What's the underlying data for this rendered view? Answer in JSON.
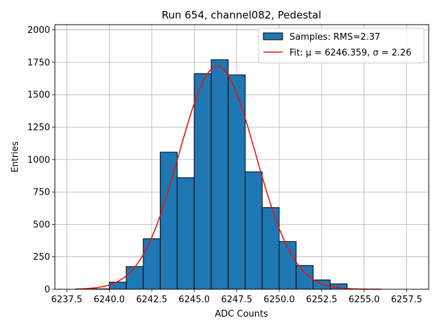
{
  "chart_data": {
    "type": "bar",
    "title": "Run 654, channel082, Pedestal",
    "xlabel": "ADC Counts",
    "ylabel": "Entries",
    "xlim": [
      6236.8,
      6258.8
    ],
    "ylim": [
      0,
      2040
    ],
    "grid": true,
    "legend_position": "top-right",
    "xticks": [
      6237.5,
      6240.0,
      6242.5,
      6245.0,
      6247.5,
      6250.0,
      6252.5,
      6255.0,
      6257.5
    ],
    "xtick_labels": [
      "6237.5",
      "6240.0",
      "6242.5",
      "6245.0",
      "6247.5",
      "6250.0",
      "6252.5",
      "6255.0",
      "6257.5"
    ],
    "yticks": [
      0,
      250,
      500,
      750,
      1000,
      1250,
      1500,
      1750,
      2000
    ],
    "ytick_labels": [
      "0",
      "250",
      "500",
      "750",
      "1000",
      "1250",
      "1500",
      "1750",
      "2000"
    ],
    "bin_width": 1,
    "bins": [
      {
        "start": 6239,
        "count": 3
      },
      {
        "start": 6240,
        "count": 55
      },
      {
        "start": 6241,
        "count": 175
      },
      {
        "start": 6242,
        "count": 390
      },
      {
        "start": 6243,
        "count": 1057
      },
      {
        "start": 6244,
        "count": 860
      },
      {
        "start": 6245,
        "count": 1662
      },
      {
        "start": 6246,
        "count": 1770
      },
      {
        "start": 6247,
        "count": 1653
      },
      {
        "start": 6248,
        "count": 905
      },
      {
        "start": 6249,
        "count": 630
      },
      {
        "start": 6250,
        "count": 368
      },
      {
        "start": 6251,
        "count": 183
      },
      {
        "start": 6252,
        "count": 72
      },
      {
        "start": 6253,
        "count": 42
      },
      {
        "start": 6254,
        "count": 2
      }
    ],
    "fit": {
      "mu": 6246.359,
      "sigma": 2.26,
      "amplitude": 1717,
      "x_range": [
        6238,
        6256
      ]
    },
    "series": [
      {
        "name": "Samples: RMS=2.37",
        "type": "histogram",
        "color": "#1f77b4"
      },
      {
        "name_prefix": "Fit: ",
        "mu_label": "μ = 6246.359",
        "sigma_label": "σ = 2.26",
        "type": "line",
        "color": "#e8140c"
      }
    ]
  }
}
